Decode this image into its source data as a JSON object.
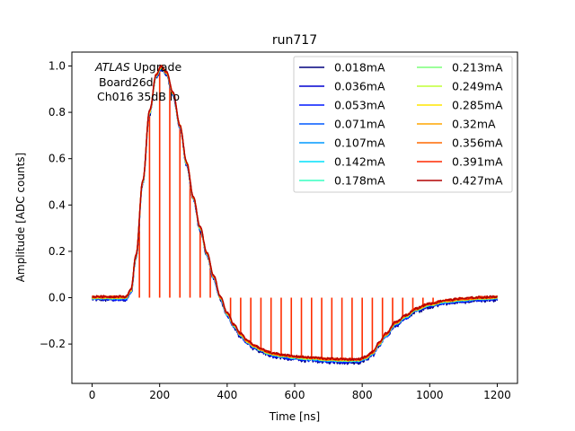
{
  "chart_data": {
    "type": "line",
    "title": "run717",
    "xlabel": "Time [ns]",
    "ylabel": "Amplitude [ADC counts]",
    "xlim": [
      -60,
      1260
    ],
    "ylim": [
      -0.37,
      1.06
    ],
    "xticks": [
      0,
      200,
      400,
      600,
      800,
      1000,
      1200
    ],
    "yticks": [
      -0.2,
      0.0,
      0.2,
      0.4,
      0.6,
      0.8,
      1.0
    ],
    "xtick_labels": [
      "0",
      "200",
      "400",
      "600",
      "800",
      "1000",
      "1200"
    ],
    "ytick_labels": [
      "−0.2",
      "0.0",
      "0.2",
      "0.4",
      "0.6",
      "0.8",
      "1.0"
    ],
    "annotation": {
      "line1_italic": "ATLAS",
      "line1_rest": " Upgrade",
      "line2": "Board26d",
      "line3": "Ch016 35dB lo"
    },
    "legend_position": "top-right",
    "legend_columns": 2,
    "grid": false,
    "pulse_shape": {
      "x": [
        0,
        100,
        115,
        130,
        150,
        170,
        190,
        205,
        220,
        240,
        260,
        280,
        300,
        320,
        340,
        360,
        380,
        400,
        420,
        440,
        460,
        480,
        500,
        520,
        540,
        560,
        600,
        650,
        700,
        750,
        790,
        810,
        830,
        850,
        870,
        900,
        930,
        960,
        1000,
        1050,
        1100,
        1150,
        1200
      ],
      "y": [
        0.0,
        0.0,
        0.03,
        0.18,
        0.5,
        0.8,
        0.96,
        0.995,
        0.97,
        0.88,
        0.74,
        0.58,
        0.43,
        0.3,
        0.19,
        0.09,
        0.0,
        -0.07,
        -0.12,
        -0.16,
        -0.19,
        -0.21,
        -0.225,
        -0.238,
        -0.245,
        -0.25,
        -0.258,
        -0.263,
        -0.268,
        -0.27,
        -0.27,
        -0.26,
        -0.24,
        -0.2,
        -0.16,
        -0.11,
        -0.08,
        -0.05,
        -0.03,
        -0.015,
        -0.008,
        -0.003,
        0.0
      ]
    },
    "stems": {
      "color": "#ff2d00",
      "x": [
        140,
        170,
        200,
        230,
        260,
        290,
        320,
        350,
        410,
        440,
        470,
        500,
        530,
        560,
        590,
        620,
        650,
        680,
        710,
        740,
        770,
        800,
        830,
        860,
        890,
        920,
        950,
        980,
        1010
      ]
    },
    "series": [
      {
        "name": "0.018mA",
        "color": "#00007f"
      },
      {
        "name": "0.036mA",
        "color": "#0000d0"
      },
      {
        "name": "0.053mA",
        "color": "#0018ff"
      },
      {
        "name": "0.071mA",
        "color": "#0058ff"
      },
      {
        "name": "0.107mA",
        "color": "#0098ff"
      },
      {
        "name": "0.142mA",
        "color": "#00e0fb"
      },
      {
        "name": "0.178mA",
        "color": "#36ffc1"
      },
      {
        "name": "0.213mA",
        "color": "#7cff79"
      },
      {
        "name": "0.249mA",
        "color": "#c1ff36"
      },
      {
        "name": "0.285mA",
        "color": "#ffe600"
      },
      {
        "name": "0.32mA",
        "color": "#ffa600"
      },
      {
        "name": "0.356mA",
        "color": "#ff6800"
      },
      {
        "name": "0.391mA",
        "color": "#ff2900"
      },
      {
        "name": "0.427mA",
        "color": "#b20000"
      }
    ]
  }
}
